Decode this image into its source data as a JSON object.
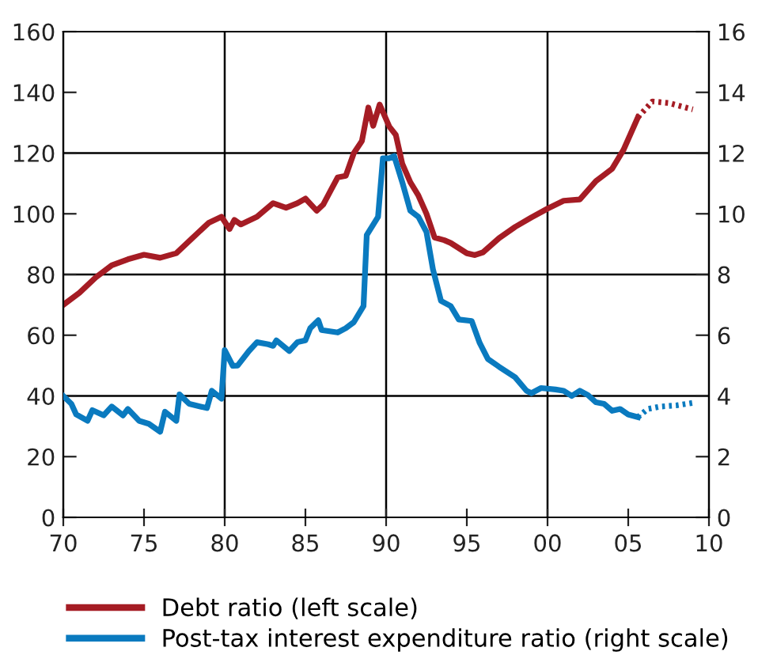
{
  "chart_data": {
    "type": "line",
    "xlim": [
      1970,
      2010
    ],
    "xticks": [
      {
        "value": 1970,
        "label": "70"
      },
      {
        "value": 1975,
        "label": "75"
      },
      {
        "value": 1980,
        "label": "80"
      },
      {
        "value": 1985,
        "label": "85"
      },
      {
        "value": 1990,
        "label": "90"
      },
      {
        "value": 1995,
        "label": "95"
      },
      {
        "value": 2000,
        "label": "00"
      },
      {
        "value": 2005,
        "label": "05"
      },
      {
        "value": 2010,
        "label": "10"
      }
    ],
    "ylim": [
      0,
      160
    ],
    "yticks": [
      0,
      20,
      40,
      60,
      80,
      100,
      120,
      140,
      160
    ],
    "y2lim": [
      0,
      16
    ],
    "y2ticks": [
      0,
      2,
      4,
      6,
      8,
      10,
      12,
      14,
      16
    ],
    "grid": false,
    "legend": "bottom",
    "ref_lines": [
      {
        "axis": "x",
        "value": 1980,
        "color": "#000000"
      },
      {
        "axis": "x",
        "value": 1990,
        "color": "#000000"
      },
      {
        "axis": "x",
        "value": 2000,
        "color": "#000000"
      },
      {
        "axis": "y",
        "value": 40,
        "color": "#000000"
      },
      {
        "axis": "y",
        "value": 80,
        "color": "#000000"
      },
      {
        "axis": "y",
        "value": 120,
        "color": "#000000"
      }
    ],
    "series": [
      {
        "name": "Debt ratio (left scale)",
        "color": "#a51c24",
        "line_style": "solid",
        "x": [
          1970,
          1971,
          1972,
          1973,
          1974,
          1975,
          1976,
          1977,
          1978,
          1979,
          1979.8,
          1980.3,
          1980.6,
          1981,
          1982,
          1983,
          1983.8,
          1984.5,
          1985,
          1985.7,
          1986.1,
          1986.6,
          1987,
          1987.5,
          1988,
          1988.5,
          1988.9,
          1989.2,
          1989.6,
          1990.2,
          1990.6,
          1991,
          1991.5,
          1992,
          1992.5,
          1993,
          1993.6,
          1994,
          1995,
          1995.5,
          1996,
          1997,
          1998,
          1999,
          2000,
          2001,
          2002,
          2003,
          2004,
          2004.7,
          2005.6
        ],
        "values": [
          70,
          74,
          79,
          83,
          85,
          86.5,
          85.5,
          87,
          92,
          97,
          99,
          95,
          98,
          96.5,
          99,
          103.5,
          102,
          103.5,
          105,
          101,
          103,
          108,
          112,
          112.5,
          120,
          124,
          135,
          129,
          136,
          128.7,
          126,
          116.5,
          110.4,
          106,
          100,
          92.2,
          91.3,
          90.4,
          87,
          86.4,
          87.3,
          92,
          95.7,
          98.8,
          101.7,
          104.3,
          104.7,
          110.8,
          114.8,
          121,
          131.8
        ]
      },
      {
        "color": "#a51c24",
        "line_style": "dotted",
        "x": [
          2005.6,
          2006.5,
          2007.5,
          2009
        ],
        "values": [
          131.8,
          137,
          136.5,
          134.4
        ]
      },
      {
        "name": "Post-tax interest expenditure ratio (right scale)",
        "color": "#0a7abf",
        "line_style": "solid",
        "axis": "y2",
        "x": [
          1970,
          1970.5,
          1970.8,
          1971.5,
          1971.8,
          1972.5,
          1973,
          1973.7,
          1974,
          1974.7,
          1975.3,
          1976,
          1976.3,
          1977,
          1977.2,
          1977.8,
          1978.5,
          1978.9,
          1979.2,
          1979.8,
          1980,
          1980.5,
          1980.8,
          1981.5,
          1982,
          1982.7,
          1983,
          1983.2,
          1984,
          1984.5,
          1985,
          1985.3,
          1985.8,
          1986,
          1987,
          1987.5,
          1988,
          1988.6,
          1988.8,
          1989.5,
          1989.8,
          1990.2,
          1990.5,
          1991,
          1991.5,
          1992,
          1992.5,
          1992.9,
          1993.4,
          1994,
          1994.5,
          1995.3,
          1995.8,
          1996.3,
          1997,
          1998,
          1998.7,
          1999,
          1999.6,
          2000.5,
          2001,
          2001.5,
          2002,
          2002.5,
          2003,
          2003.5,
          2004,
          2004.5,
          2005,
          2005.6
        ],
        "values": [
          4.0,
          3.74,
          3.39,
          3.18,
          3.53,
          3.36,
          3.65,
          3.36,
          3.57,
          3.18,
          3.08,
          2.82,
          3.48,
          3.18,
          4.05,
          3.74,
          3.65,
          3.6,
          4.17,
          3.91,
          5.51,
          4.99,
          5.0,
          5.48,
          5.77,
          5.7,
          5.65,
          5.83,
          5.48,
          5.77,
          5.83,
          6.23,
          6.49,
          6.17,
          6.09,
          6.23,
          6.43,
          6.96,
          9.3,
          9.9,
          11.83,
          11.83,
          11.9,
          11.04,
          10.1,
          9.9,
          9.4,
          8.17,
          7.13,
          6.96,
          6.52,
          6.47,
          5.74,
          5.22,
          4.96,
          4.61,
          4.17,
          4.09,
          4.26,
          4.21,
          4.17,
          4.0,
          4.17,
          4.03,
          3.79,
          3.74,
          3.51,
          3.57,
          3.39,
          3.3
        ]
      },
      {
        "color": "#0a7abf",
        "line_style": "dotted",
        "axis": "y2",
        "x": [
          2005.6,
          2006.2,
          2007,
          2008,
          2009
        ],
        "values": [
          3.3,
          3.57,
          3.65,
          3.69,
          3.77
        ]
      }
    ]
  }
}
